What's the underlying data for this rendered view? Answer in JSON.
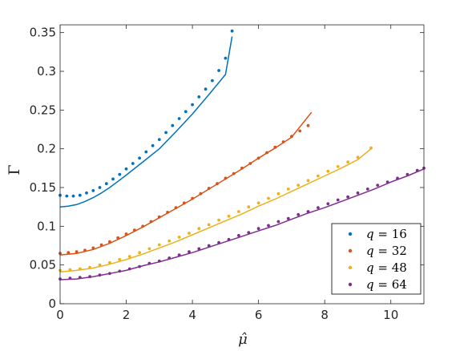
{
  "chart_data": {
    "type": "scatter",
    "title": "",
    "xlabel": "μ̂",
    "ylabel": "Γ",
    "xlim": [
      0,
      11
    ],
    "ylim": [
      0,
      0.36
    ],
    "xticks": [
      0,
      2,
      4,
      6,
      8,
      10
    ],
    "yticks": [
      0,
      0.05,
      0.1,
      0.15,
      0.2,
      0.25,
      0.3,
      0.35
    ],
    "xtick_labels": [
      "0",
      "2",
      "4",
      "6",
      "8",
      "10"
    ],
    "ytick_labels": [
      "0",
      "0.05",
      "0.1",
      "0.15",
      "0.2",
      "0.25",
      "0.3",
      "0.35"
    ],
    "grid": false,
    "legend": "bottom-right",
    "series": [
      {
        "name": "q = 16",
        "legend_var": "q",
        "legend_val": "16",
        "color": "#0072BD",
        "points": {
          "x": [
            0,
            0.2,
            0.4,
            0.6,
            0.8,
            1.0,
            1.2,
            1.4,
            1.6,
            1.8,
            2.0,
            2.2,
            2.4,
            2.6,
            2.8,
            3.0,
            3.2,
            3.4,
            3.6,
            3.8,
            4.0,
            4.2,
            4.4,
            4.6,
            4.8,
            5.0,
            5.2
          ],
          "y": [
            0.14,
            0.139,
            0.139,
            0.14,
            0.143,
            0.146,
            0.15,
            0.155,
            0.161,
            0.167,
            0.174,
            0.181,
            0.188,
            0.196,
            0.204,
            0.212,
            0.221,
            0.23,
            0.239,
            0.248,
            0.257,
            0.267,
            0.277,
            0.288,
            0.301,
            0.317,
            0.352
          ]
        },
        "curve": {
          "x": [
            0,
            0.25,
            0.5,
            0.75,
            1.0,
            1.25,
            1.5,
            1.75,
            2.0,
            2.5,
            3.0,
            3.5,
            4.0,
            4.5,
            5.0,
            5.2
          ],
          "y": [
            0.125,
            0.126,
            0.128,
            0.132,
            0.137,
            0.143,
            0.15,
            0.158,
            0.166,
            0.183,
            0.2,
            0.222,
            0.245,
            0.27,
            0.296,
            0.345
          ]
        }
      },
      {
        "name": "q = 32",
        "legend_var": "q",
        "legend_val": "32",
        "color": "#D95319",
        "points": {
          "x": [
            0,
            0.25,
            0.5,
            0.75,
            1.0,
            1.25,
            1.5,
            1.75,
            2.0,
            2.25,
            2.5,
            2.75,
            3.0,
            3.25,
            3.5,
            3.75,
            4.0,
            4.25,
            4.5,
            4.75,
            5.0,
            5.25,
            5.5,
            5.75,
            6.0,
            6.25,
            6.5,
            6.75,
            7.0,
            7.25,
            7.5
          ],
          "y": [
            0.065,
            0.066,
            0.067,
            0.069,
            0.072,
            0.076,
            0.08,
            0.085,
            0.09,
            0.095,
            0.1,
            0.106,
            0.112,
            0.118,
            0.124,
            0.13,
            0.136,
            0.142,
            0.149,
            0.155,
            0.162,
            0.168,
            0.175,
            0.181,
            0.188,
            0.195,
            0.202,
            0.209,
            0.216,
            0.223,
            0.23
          ]
        },
        "curve": {
          "x": [
            0,
            0.5,
            1.0,
            1.5,
            2.0,
            2.5,
            3.0,
            3.5,
            4.0,
            4.5,
            5.0,
            5.5,
            6.0,
            6.5,
            7.0,
            7.6
          ],
          "y": [
            0.063,
            0.065,
            0.07,
            0.078,
            0.088,
            0.099,
            0.111,
            0.123,
            0.135,
            0.148,
            0.161,
            0.174,
            0.188,
            0.201,
            0.215,
            0.247
          ]
        }
      },
      {
        "name": "q = 48",
        "legend_var": "q",
        "legend_val": "48",
        "color": "#EDB120",
        "points": {
          "x": [
            0,
            0.3,
            0.6,
            0.9,
            1.2,
            1.5,
            1.8,
            2.1,
            2.4,
            2.7,
            3.0,
            3.3,
            3.6,
            3.9,
            4.2,
            4.5,
            4.8,
            5.1,
            5.4,
            5.7,
            6.0,
            6.3,
            6.6,
            6.9,
            7.2,
            7.5,
            7.8,
            8.1,
            8.4,
            8.7,
            9.0,
            9.4
          ],
          "y": [
            0.043,
            0.044,
            0.045,
            0.047,
            0.05,
            0.053,
            0.057,
            0.061,
            0.066,
            0.071,
            0.076,
            0.081,
            0.086,
            0.091,
            0.097,
            0.102,
            0.108,
            0.113,
            0.119,
            0.125,
            0.13,
            0.136,
            0.142,
            0.148,
            0.153,
            0.159,
            0.165,
            0.171,
            0.177,
            0.183,
            0.189,
            0.201
          ]
        },
        "curve": {
          "x": [
            0,
            0.5,
            1.0,
            1.5,
            2.0,
            2.5,
            3.0,
            3.5,
            4.0,
            4.5,
            5.0,
            5.5,
            6.0,
            6.5,
            7.0,
            7.5,
            8.0,
            8.5,
            9.0,
            9.4
          ],
          "y": [
            0.041,
            0.043,
            0.046,
            0.051,
            0.057,
            0.064,
            0.072,
            0.08,
            0.089,
            0.098,
            0.107,
            0.116,
            0.126,
            0.135,
            0.145,
            0.155,
            0.165,
            0.175,
            0.186,
            0.2
          ]
        }
      },
      {
        "name": "q = 64",
        "legend_var": "q",
        "legend_val": "64",
        "color": "#7E2F8E",
        "points": {
          "x": [
            0,
            0.3,
            0.6,
            0.9,
            1.2,
            1.5,
            1.8,
            2.1,
            2.4,
            2.7,
            3.0,
            3.3,
            3.6,
            3.9,
            4.2,
            4.5,
            4.8,
            5.1,
            5.4,
            5.7,
            6.0,
            6.3,
            6.6,
            6.9,
            7.2,
            7.5,
            7.8,
            8.1,
            8.4,
            8.7,
            9.0,
            9.3,
            9.6,
            9.9,
            10.2,
            10.5,
            10.8,
            11.0
          ],
          "y": [
            0.032,
            0.033,
            0.034,
            0.035,
            0.037,
            0.039,
            0.042,
            0.045,
            0.048,
            0.052,
            0.055,
            0.059,
            0.063,
            0.067,
            0.071,
            0.075,
            0.079,
            0.083,
            0.088,
            0.092,
            0.097,
            0.101,
            0.106,
            0.11,
            0.115,
            0.119,
            0.124,
            0.129,
            0.134,
            0.138,
            0.143,
            0.148,
            0.153,
            0.157,
            0.162,
            0.167,
            0.172,
            0.175
          ]
        },
        "curve": {
          "x": [
            0,
            0.5,
            1.0,
            1.5,
            2.0,
            2.5,
            3.0,
            3.5,
            4.0,
            4.5,
            5.0,
            5.5,
            6.0,
            6.5,
            7.0,
            7.5,
            8.0,
            8.5,
            9.0,
            9.5,
            10.0,
            10.5,
            11.0
          ],
          "y": [
            0.031,
            0.032,
            0.035,
            0.039,
            0.043,
            0.049,
            0.054,
            0.06,
            0.066,
            0.073,
            0.08,
            0.087,
            0.094,
            0.101,
            0.109,
            0.117,
            0.124,
            0.132,
            0.14,
            0.148,
            0.157,
            0.165,
            0.174
          ]
        }
      }
    ]
  }
}
